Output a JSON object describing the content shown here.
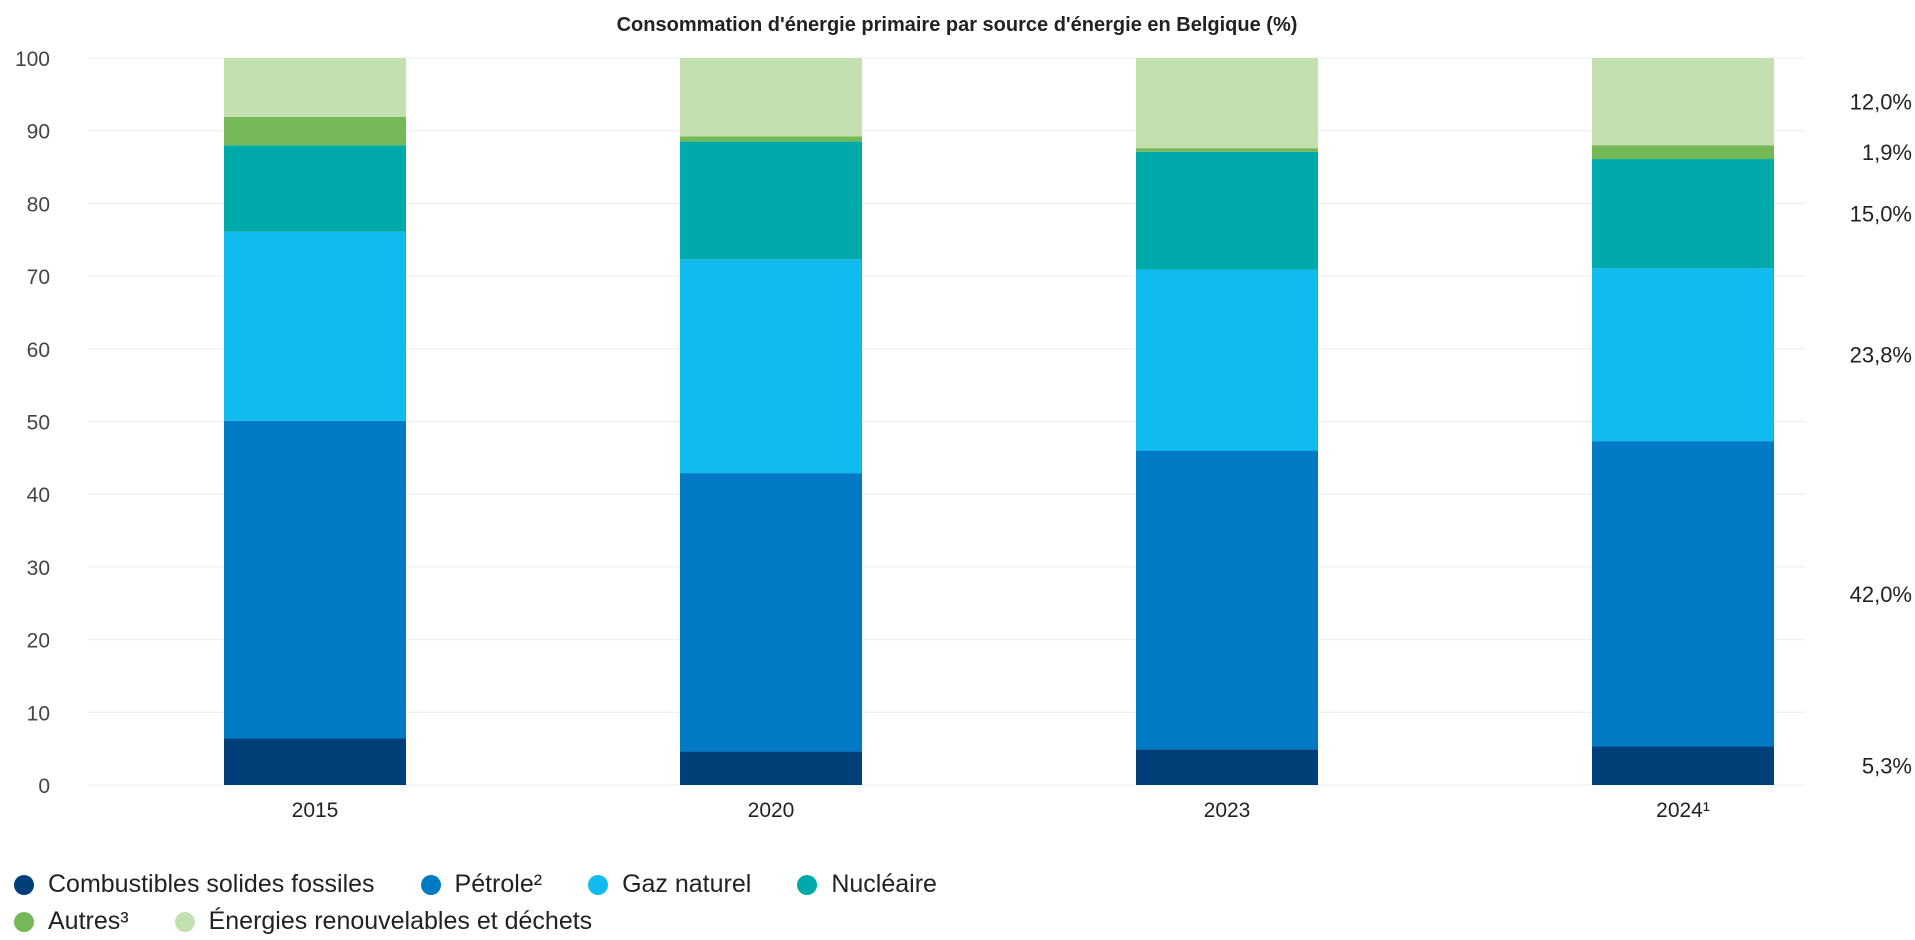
{
  "chart_data": {
    "type": "bar",
    "stacked": true,
    "title": "Consommation d'énergie primaire par source d'énergie en Belgique (%)",
    "xlabel": "",
    "ylabel": "",
    "ylim": [
      0,
      100
    ],
    "yticks": [
      "0",
      "10",
      "20",
      "30",
      "40",
      "50",
      "60",
      "70",
      "80",
      "90",
      "100"
    ],
    "grid": true,
    "legend_position": "bottom-left",
    "categories": [
      "2015",
      "2020",
      "2023",
      "2024¹"
    ],
    "series": [
      {
        "name": "Combustibles solides fossiles",
        "color": "#003f78",
        "values": [
          6.4,
          4.6,
          4.9,
          5.3
        ]
      },
      {
        "name": "Pétrole²",
        "color": "#007ac5",
        "values": [
          43.7,
          38.3,
          41.1,
          42.0
        ]
      },
      {
        "name": "Gaz naturel",
        "color": "#12bbef",
        "values": [
          26.0,
          29.4,
          24.9,
          23.8
        ]
      },
      {
        "name": "Nucléaire",
        "color": "#00aaaa",
        "values": [
          11.9,
          16.2,
          16.2,
          15.0
        ]
      },
      {
        "name": "Autres³",
        "color": "#74b857",
        "values": [
          3.9,
          0.7,
          0.5,
          1.9
        ]
      },
      {
        "name": "Énergies renouvelables et déchets",
        "color": "#c4dfb0",
        "values": [
          8.1,
          10.8,
          12.4,
          12.0
        ]
      }
    ],
    "data_labels": [
      "5,3%",
      "42,0%",
      "23,8%",
      "15,0%",
      "1,9%",
      "12,0%"
    ]
  }
}
